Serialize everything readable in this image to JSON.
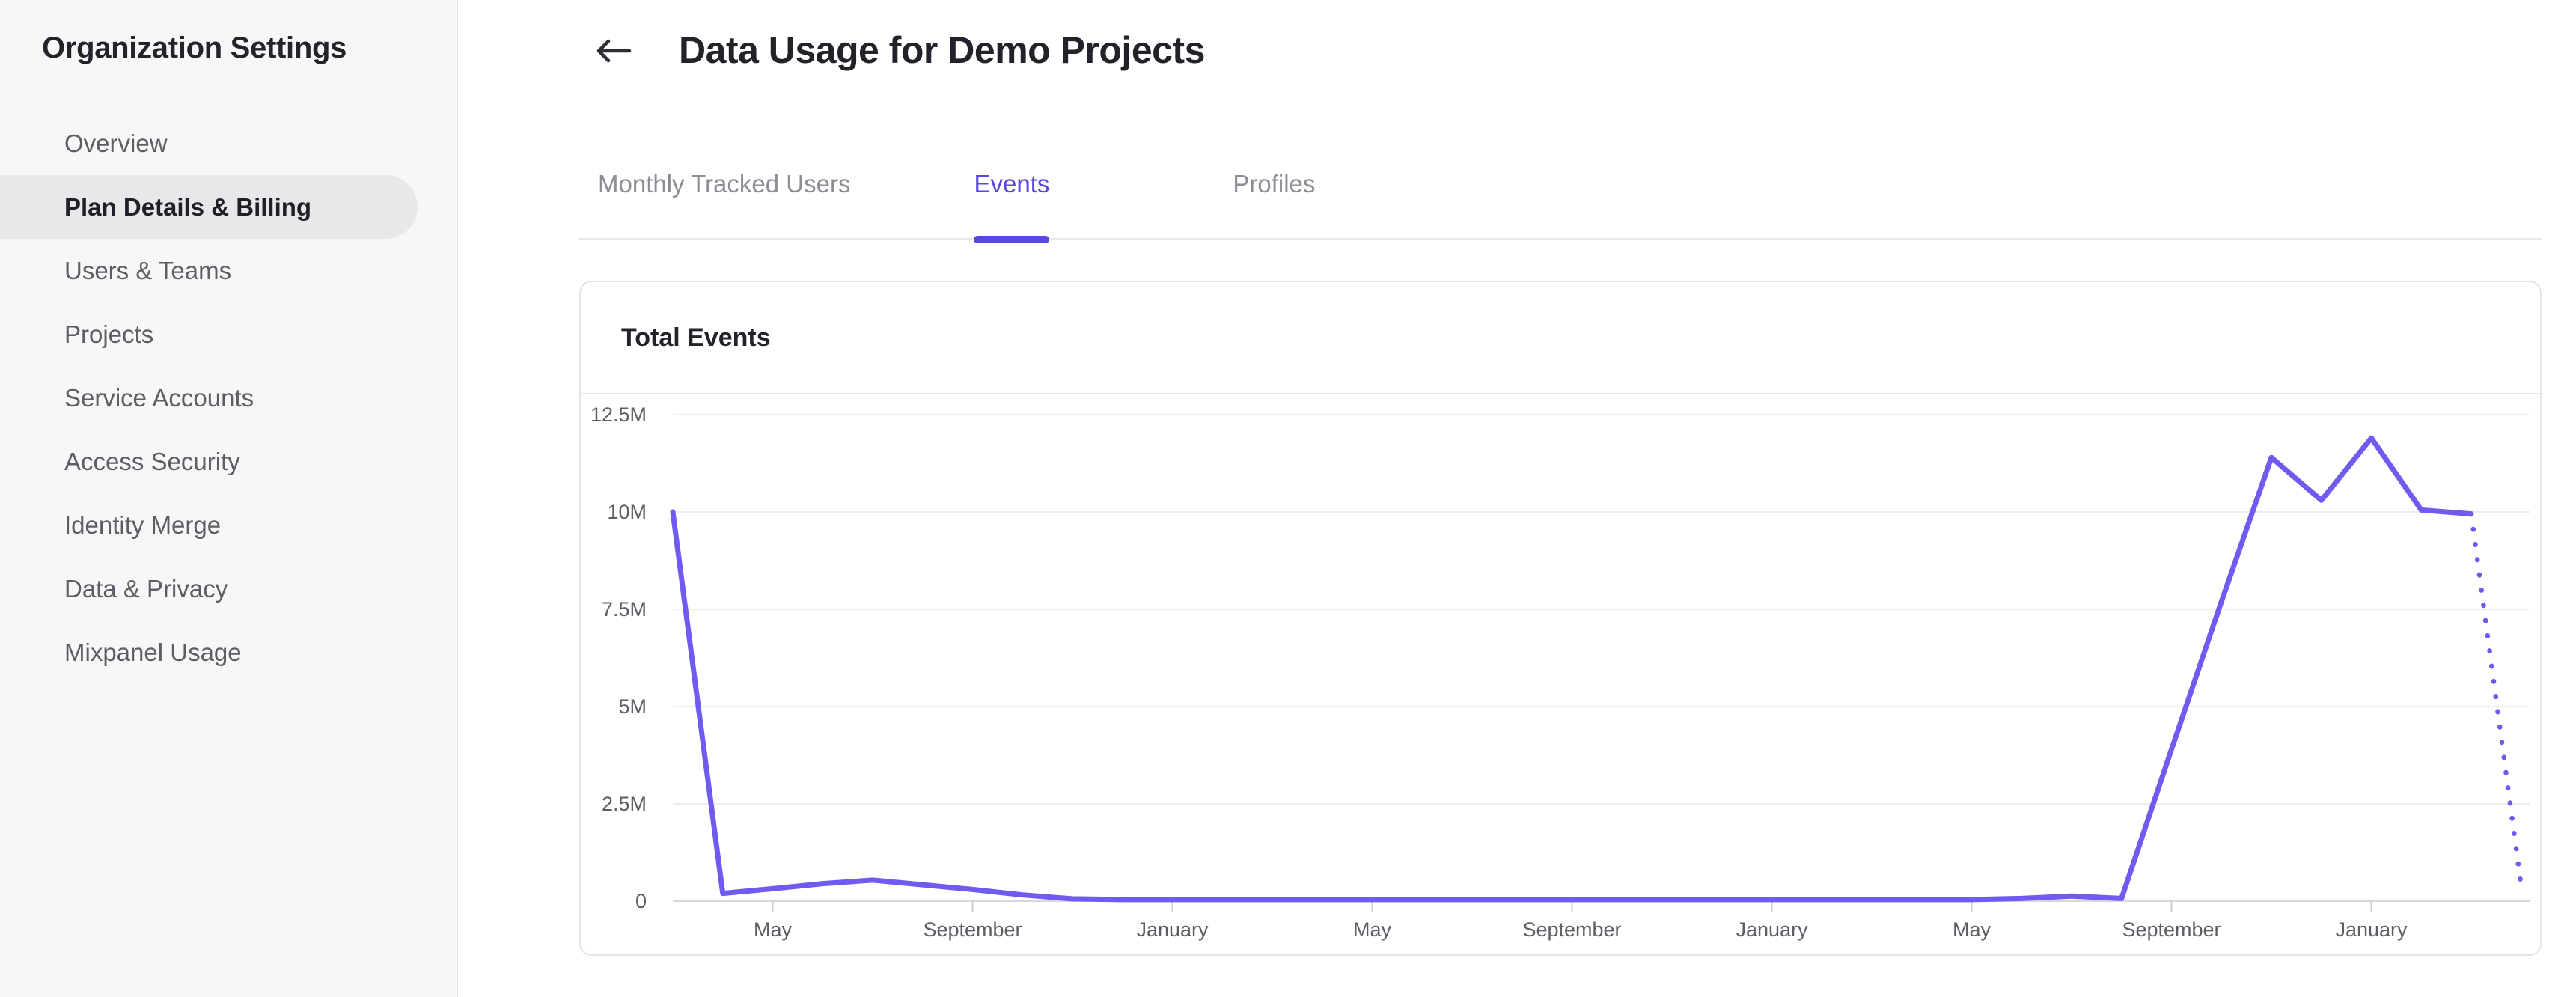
{
  "sidebar": {
    "title": "Organization Settings",
    "items": [
      {
        "label": "Overview",
        "active": false
      },
      {
        "label": "Plan Details & Billing",
        "active": true
      },
      {
        "label": "Users & Teams",
        "active": false
      },
      {
        "label": "Projects",
        "active": false
      },
      {
        "label": "Service Accounts",
        "active": false
      },
      {
        "label": "Access Security",
        "active": false
      },
      {
        "label": "Identity Merge",
        "active": false
      },
      {
        "label": "Data & Privacy",
        "active": false
      },
      {
        "label": "Mixpanel Usage",
        "active": false
      }
    ]
  },
  "header": {
    "title": "Data Usage for Demo Projects"
  },
  "icons": {
    "back_arrow": "←"
  },
  "tabs": [
    {
      "label": "Monthly Tracked Users",
      "active": false
    },
    {
      "label": "Events",
      "active": true
    },
    {
      "label": "Profiles",
      "active": false
    }
  ],
  "card": {
    "title": "Total Events"
  },
  "colors": {
    "accent": "#5847E5",
    "line": "#6F5BF0",
    "sidebar_bg": "#f7f7f8",
    "selected_pill": "#e8e8ea",
    "grid": "#ededf0",
    "axis": "#d8d8dc",
    "tick": "#cfcfd4",
    "axis_label": "#5d5d66",
    "tab_inactive": "#8d8d95"
  },
  "chart_data": {
    "type": "line",
    "title": "Total Events",
    "y_unit": "events (millions)",
    "ylim": [
      0,
      12500000
    ],
    "y_tick_labels": [
      "0",
      "2.5M",
      "5M",
      "7.5M",
      "10M",
      "12.5M"
    ],
    "x_tick_labels": [
      "May",
      "September",
      "January",
      "May",
      "September",
      "January",
      "May",
      "September",
      "January"
    ],
    "x_tick_indices": [
      2,
      6,
      10,
      14,
      18,
      22,
      26,
      30,
      34
    ],
    "points_monthly_millions": [
      10,
      0.2,
      0.32,
      0.45,
      0.54,
      0.42,
      0.3,
      0.16,
      0.06,
      0.04,
      0.04,
      0.04,
      0.04,
      0.04,
      0.04,
      0.04,
      0.04,
      0.04,
      0.04,
      0.04,
      0.04,
      0.04,
      0.04,
      0.04,
      0.04,
      0.04,
      0.04,
      0.07,
      0.13,
      0.07,
      3.9,
      7.7,
      11.4,
      10.3,
      11.9,
      10.05,
      9.95
    ],
    "projected_point_millions": 0.4,
    "projected_style": "dotted",
    "grid": "horizontal-only",
    "legend": "none"
  }
}
